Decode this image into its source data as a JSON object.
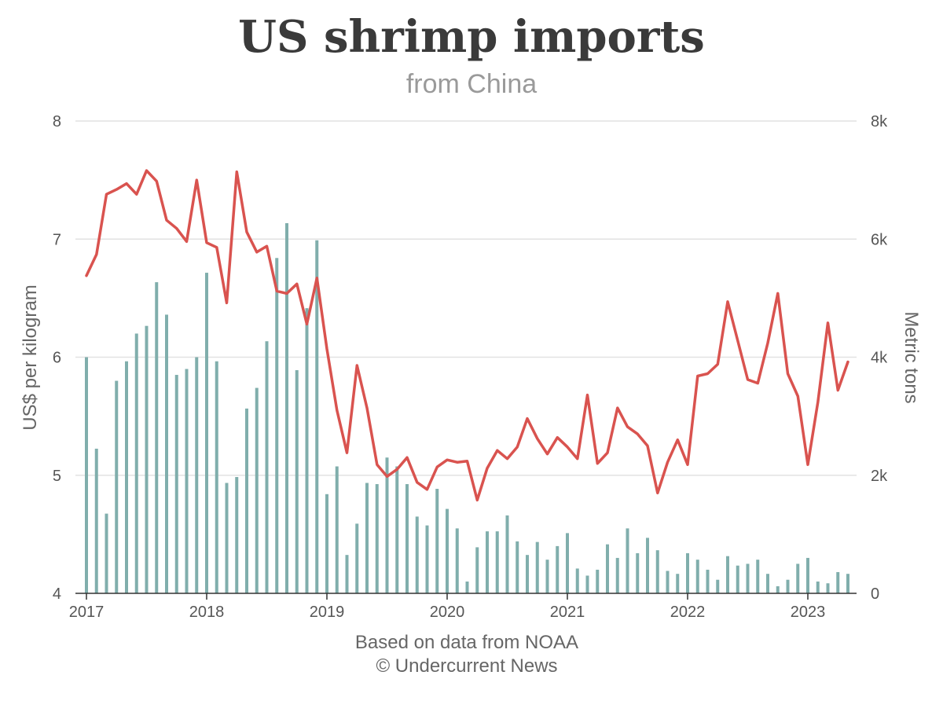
{
  "chart_data": {
    "type": "bar+line",
    "title": "US shrimp imports",
    "subtitle": "from China",
    "y_left_label": "US$ per kilogram",
    "y_right_label": "Metric tons",
    "y_left_lim": [
      4,
      8
    ],
    "y_right_lim": [
      0,
      8000
    ],
    "y_left_ticks": [
      "4",
      "5",
      "6",
      "7",
      "8"
    ],
    "y_right_ticks": [
      "0",
      "2k",
      "4k",
      "6k",
      "8k"
    ],
    "x_ticks": [
      "2017",
      "2018",
      "2019",
      "2020",
      "2021",
      "2022",
      "2023"
    ],
    "grid": true,
    "start": "2017-01",
    "volume_tons": [
      4000,
      2450,
      1350,
      3600,
      3930,
      4400,
      4530,
      5270,
      4720,
      3700,
      3800,
      4000,
      5430,
      3930,
      1870,
      1970,
      3130,
      3480,
      4270,
      5680,
      6270,
      3780,
      4830,
      5980,
      1680,
      2150,
      650,
      1180,
      1870,
      1850,
      2300,
      2150,
      1850,
      1300,
      1150,
      1770,
      1430,
      1100,
      200,
      780,
      1050,
      1050,
      1320,
      880,
      650,
      870,
      570,
      800,
      1020,
      420,
      300,
      400,
      830,
      600,
      1100,
      680,
      940,
      730,
      380,
      330,
      680,
      570,
      400,
      230,
      630,
      470,
      500,
      570,
      330,
      120,
      230,
      500,
      600,
      200,
      170,
      360,
      330
    ],
    "price_usd_kg": [
      6.69,
      6.87,
      7.38,
      7.42,
      7.47,
      7.38,
      7.58,
      7.49,
      7.16,
      7.09,
      6.98,
      7.5,
      6.97,
      6.93,
      6.46,
      7.57,
      7.06,
      6.89,
      6.94,
      6.56,
      6.54,
      6.62,
      6.28,
      6.67,
      6.07,
      5.55,
      5.19,
      5.93,
      5.57,
      5.09,
      4.99,
      5.05,
      5.15,
      4.94,
      4.88,
      5.07,
      5.13,
      5.11,
      5.12,
      4.79,
      5.06,
      5.21,
      5.14,
      5.24,
      5.48,
      5.31,
      5.18,
      5.32,
      5.24,
      5.14,
      5.68,
      5.1,
      5.19,
      5.57,
      5.41,
      5.35,
      5.25,
      4.85,
      5.11,
      5.3,
      5.09,
      5.84,
      5.86,
      5.94,
      6.47,
      6.14,
      5.81,
      5.78,
      6.12,
      6.54,
      5.86,
      5.67,
      5.09,
      5.62,
      6.29,
      5.72,
      5.96
    ]
  },
  "source_line1": "Based on data from NOAA",
  "source_line2": "© Undercurrent News",
  "colors": {
    "bars": "#80aeac",
    "line": "#d9534f",
    "grid": "#e2e2e2",
    "axis": "#333333"
  }
}
